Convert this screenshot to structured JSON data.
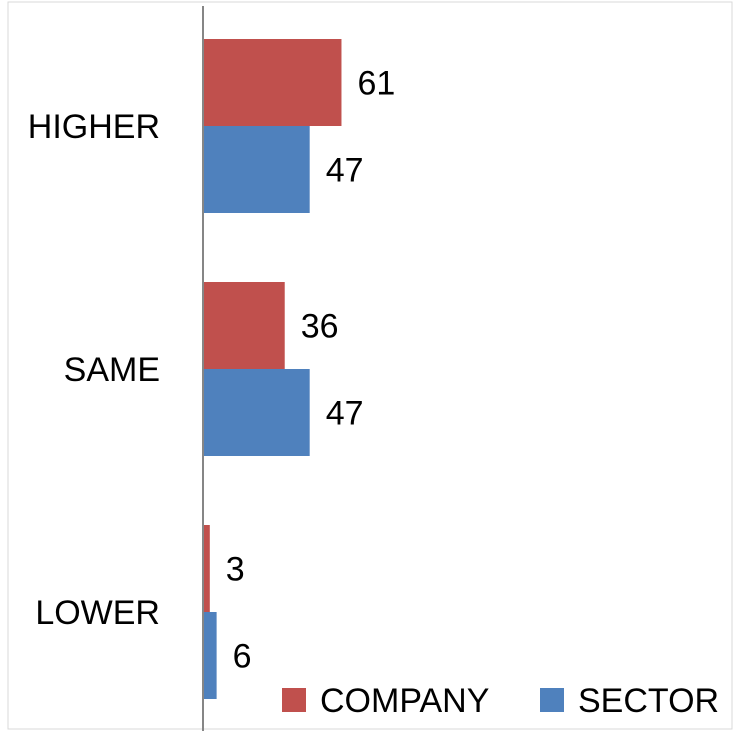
{
  "chart_data": {
    "type": "bar",
    "orientation": "horizontal",
    "categories": [
      "HIGHER",
      "SAME",
      "LOWER"
    ],
    "series": [
      {
        "name": "COMPANY",
        "values": [
          61,
          36,
          3
        ],
        "color": "#C0504D"
      },
      {
        "name": "SECTOR",
        "values": [
          47,
          47,
          6
        ],
        "color": "#4F81BD"
      }
    ],
    "data_labels": true,
    "legend": {
      "position": "bottom-right"
    },
    "grid": false
  },
  "colors": {
    "company": "#C0504D",
    "sector": "#4F81BD",
    "axis": "#868686"
  }
}
